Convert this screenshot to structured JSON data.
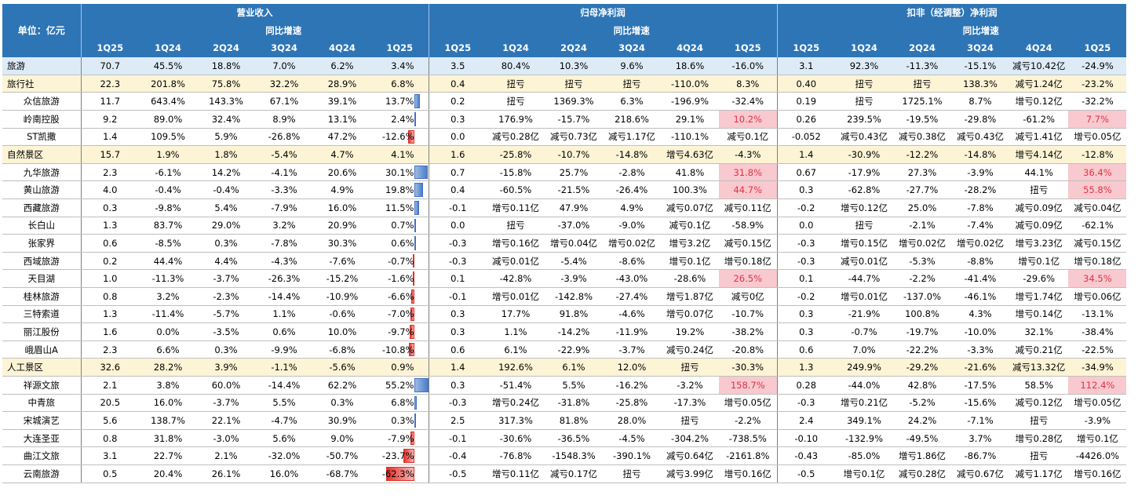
{
  "header": {
    "unit": "单位：亿元",
    "groups": [
      "营业收入",
      "归母净利润",
      "扣非（经调整）净利润"
    ],
    "growth_label": "同比增速",
    "cols": [
      "1Q25",
      "1Q24",
      "2Q24",
      "3Q24",
      "4Q24",
      "1Q25"
    ]
  },
  "colors": {
    "header_bg": "#2e75b6",
    "category_bg": "#fdf4d6",
    "total_bg": "#ddebf7",
    "highlight_bg": "#f8c9ce",
    "positive_bar": "#4472c4",
    "negative_bar": "#e8312a"
  },
  "rows": [
    {
      "type": "total",
      "name": "旅游",
      "rev": [
        "70.7",
        "45.5%",
        "18.8%",
        "7.0%",
        "6.2%",
        "3.4%"
      ],
      "np": [
        "3.5",
        "80.4%",
        "10.3%",
        "9.6%",
        "18.6%",
        "-16.0%"
      ],
      "dnp": [
        "3.1",
        "92.3%",
        "-11.3%",
        "-15.1%",
        "减亏10.42亿",
        "-24.9%"
      ],
      "bar": 0
    },
    {
      "type": "cat",
      "name": "旅行社",
      "rev": [
        "22.3",
        "201.8%",
        "75.8%",
        "32.2%",
        "28.9%",
        "6.8%"
      ],
      "np": [
        "0.4",
        "扭亏",
        "扭亏",
        "扭亏",
        "-110.0%",
        "8.3%"
      ],
      "dnp": [
        "0.40",
        "扭亏",
        "扭亏",
        "138.3%",
        "减亏1.24亿",
        "-23.2%"
      ],
      "bar": 0
    },
    {
      "type": "sub",
      "name": "众信旅游",
      "rev": [
        "11.7",
        "643.4%",
        "143.3%",
        "67.1%",
        "39.1%",
        "13.7%"
      ],
      "np": [
        "0.2",
        "扭亏",
        "1369.3%",
        "6.3%",
        "-196.9%",
        "-32.4%"
      ],
      "dnp": [
        "0.19",
        "扭亏",
        "1725.1%",
        "8.7%",
        "增亏0.12亿",
        "-32.2%"
      ],
      "bar": 13.7
    },
    {
      "type": "sub",
      "name": "岭南控股",
      "rev": [
        "9.2",
        "89.0%",
        "32.4%",
        "8.9%",
        "13.1%",
        "2.4%"
      ],
      "np": [
        "0.3",
        "176.9%",
        "-15.7%",
        "218.6%",
        "29.1%",
        "10.2%"
      ],
      "dnp": [
        "0.26",
        "239.5%",
        "-19.5%",
        "-29.8%",
        "-61.2%",
        "7.7%"
      ],
      "bar": 2.4,
      "hl": true
    },
    {
      "type": "sub",
      "name": "ST凯撒",
      "rev": [
        "1.4",
        "109.5%",
        "5.9%",
        "-26.8%",
        "47.2%",
        "-12.6%"
      ],
      "np": [
        "0.0",
        "减亏0.28亿",
        "减亏0.73亿",
        "减亏1.17亿",
        "-110.1%",
        "减亏0.1亿"
      ],
      "dnp": [
        "-0.052",
        "减亏0.43亿",
        "减亏0.38亿",
        "减亏0.43亿",
        "减亏1.41亿",
        "增亏0.05亿"
      ],
      "bar": -12.6
    },
    {
      "type": "cat",
      "name": "自然景区",
      "rev": [
        "15.7",
        "1.9%",
        "1.8%",
        "-5.4%",
        "4.7%",
        "4.1%"
      ],
      "np": [
        "1.6",
        "-25.8%",
        "-10.7%",
        "-14.8%",
        "增亏4.63亿",
        "-4.3%"
      ],
      "dnp": [
        "1.4",
        "-30.9%",
        "-12.2%",
        "-14.8%",
        "增亏4.14亿",
        "-12.8%"
      ],
      "bar": 0
    },
    {
      "type": "sub",
      "name": "九华旅游",
      "rev": [
        "2.3",
        "-6.1%",
        "14.2%",
        "-4.1%",
        "20.6%",
        "30.1%"
      ],
      "np": [
        "0.7",
        "-15.8%",
        "25.7%",
        "-2.8%",
        "41.8%",
        "31.8%"
      ],
      "dnp": [
        "0.67",
        "-17.9%",
        "27.3%",
        "-3.9%",
        "44.1%",
        "36.4%"
      ],
      "bar": 30.1,
      "hl": true
    },
    {
      "type": "sub",
      "name": "黄山旅游",
      "rev": [
        "4.0",
        "-0.4%",
        "-0.4%",
        "-3.3%",
        "4.9%",
        "19.8%"
      ],
      "np": [
        "0.4",
        "-60.5%",
        "-21.5%",
        "-26.4%",
        "100.3%",
        "44.7%"
      ],
      "dnp": [
        "0.3",
        "-62.8%",
        "-27.7%",
        "-28.2%",
        "扭亏",
        "55.8%"
      ],
      "bar": 19.8,
      "hl": true
    },
    {
      "type": "sub",
      "name": "西藏旅游",
      "rev": [
        "0.3",
        "-9.8%",
        "5.4%",
        "-7.9%",
        "16.0%",
        "11.5%"
      ],
      "np": [
        "-0.1",
        "增亏0.11亿",
        "47.9%",
        "4.9%",
        "减亏0.07亿",
        "减亏0.11亿"
      ],
      "dnp": [
        "-0.2",
        "增亏0.12亿",
        "25.0%",
        "-7.8%",
        "减亏0.09亿",
        "减亏0.04亿"
      ],
      "bar": 11.5
    },
    {
      "type": "sub",
      "name": "长白山",
      "rev": [
        "1.3",
        "83.7%",
        "29.0%",
        "3.2%",
        "20.9%",
        "0.7%"
      ],
      "np": [
        "0.0",
        "扭亏",
        "-37.0%",
        "-9.0%",
        "减亏0.1亿",
        "-58.9%"
      ],
      "dnp": [
        "0.0",
        "扭亏",
        "-2.1%",
        "-7.4%",
        "减亏0.09亿",
        "-62.1%"
      ],
      "bar": 0.7
    },
    {
      "type": "sub",
      "name": "张家界",
      "rev": [
        "0.6",
        "-8.5%",
        "0.3%",
        "-7.8%",
        "30.3%",
        "0.6%"
      ],
      "np": [
        "-0.3",
        "增亏0.16亿",
        "增亏0.04亿",
        "增亏0.02亿",
        "增亏3.2亿",
        "减亏0.15亿"
      ],
      "dnp": [
        "-0.3",
        "增亏0.15亿",
        "增亏0.02亿",
        "增亏0.02亿",
        "增亏3.23亿",
        "减亏0.15亿"
      ],
      "bar": 0.6
    },
    {
      "type": "sub",
      "name": "西域旅游",
      "rev": [
        "0.2",
        "44.4%",
        "4.4%",
        "-4.3%",
        "-7.6%",
        "-0.7%"
      ],
      "np": [
        "-0.3",
        "减亏0.01亿",
        "-5.4%",
        "-8.6%",
        "增亏0.1亿",
        "增亏0.18亿"
      ],
      "dnp": [
        "-0.3",
        "减亏0.01亿",
        "-5.3%",
        "-8.8%",
        "增亏0.1亿",
        "增亏0.18亿"
      ],
      "bar": -0.7
    },
    {
      "type": "sub",
      "name": "天目湖",
      "rev": [
        "1.0",
        "-11.3%",
        "-3.7%",
        "-26.3%",
        "-15.2%",
        "-1.6%"
      ],
      "np": [
        "0.1",
        "-42.8%",
        "-3.9%",
        "-43.0%",
        "-28.6%",
        "26.5%"
      ],
      "dnp": [
        "0.1",
        "-44.7%",
        "-2.2%",
        "-41.4%",
        "-29.6%",
        "34.5%"
      ],
      "bar": -1.6,
      "hl": true
    },
    {
      "type": "sub",
      "name": "桂林旅游",
      "rev": [
        "0.8",
        "3.2%",
        "-2.3%",
        "-14.4%",
        "-10.9%",
        "-6.6%"
      ],
      "np": [
        "-0.1",
        "增亏0.01亿",
        "-142.8%",
        "-27.4%",
        "增亏1.87亿",
        "减亏0亿"
      ],
      "dnp": [
        "-0.2",
        "增亏0.01亿",
        "-137.0%",
        "-46.1%",
        "增亏1.74亿",
        "增亏0.06亿"
      ],
      "bar": -6.6
    },
    {
      "type": "sub",
      "name": "三特索道",
      "rev": [
        "1.3",
        "-11.4%",
        "-5.7%",
        "1.1%",
        "-0.6%",
        "-7.0%"
      ],
      "np": [
        "0.3",
        "17.7%",
        "91.8%",
        "-4.6%",
        "增亏0.07亿",
        "-10.7%"
      ],
      "dnp": [
        "0.3",
        "-21.9%",
        "100.8%",
        "4.3%",
        "增亏0.14亿",
        "-13.1%"
      ],
      "bar": -7.0
    },
    {
      "type": "sub",
      "name": "丽江股份",
      "rev": [
        "1.6",
        "0.0%",
        "-3.5%",
        "0.6%",
        "10.0%",
        "-9.7%"
      ],
      "np": [
        "0.3",
        "1.1%",
        "-14.2%",
        "-11.9%",
        "19.2%",
        "-38.2%"
      ],
      "dnp": [
        "0.3",
        "-0.7%",
        "-19.7%",
        "-10.0%",
        "32.1%",
        "-38.4%"
      ],
      "bar": -9.7
    },
    {
      "type": "sub",
      "name": "峨眉山A",
      "rev": [
        "2.3",
        "6.6%",
        "0.3%",
        "-9.9%",
        "-6.8%",
        "-10.8%"
      ],
      "np": [
        "0.6",
        "6.1%",
        "-22.9%",
        "-3.7%",
        "减亏0.24亿",
        "-20.8%"
      ],
      "dnp": [
        "0.6",
        "7.0%",
        "-22.2%",
        "-3.3%",
        "减亏0.21亿",
        "-22.5%"
      ],
      "bar": -10.8
    },
    {
      "type": "cat",
      "name": "人工景区",
      "rev": [
        "32.6",
        "28.2%",
        "3.9%",
        "-1.1%",
        "-5.6%",
        "0.9%"
      ],
      "np": [
        "1.4",
        "192.6%",
        "6.1%",
        "12.0%",
        "扭亏",
        "-30.3%"
      ],
      "dnp": [
        "1.3",
        "249.9%",
        "-29.2%",
        "-21.6%",
        "减亏13.32亿",
        "-34.9%"
      ],
      "bar": 0
    },
    {
      "type": "sub",
      "name": "祥源文旅",
      "rev": [
        "2.1",
        "3.8%",
        "60.0%",
        "-14.4%",
        "62.2%",
        "55.2%"
      ],
      "np": [
        "0.3",
        "-51.4%",
        "5.5%",
        "-16.2%",
        "-3.2%",
        "158.7%"
      ],
      "dnp": [
        "0.28",
        "-44.0%",
        "42.8%",
        "-17.5%",
        "58.5%",
        "112.4%"
      ],
      "bar": 55.2,
      "hl": true
    },
    {
      "type": "sub",
      "name": "中青旅",
      "rev": [
        "20.5",
        "16.0%",
        "-3.7%",
        "5.5%",
        "0.3%",
        "6.8%"
      ],
      "np": [
        "-0.3",
        "增亏0.24亿",
        "-31.8%",
        "-25.8%",
        "-17.3%",
        "增亏0.05亿"
      ],
      "dnp": [
        "-0.3",
        "增亏0.21亿",
        "-5.2%",
        "-15.6%",
        "减亏0.12亿",
        "增亏0.05亿"
      ],
      "bar": 6.8
    },
    {
      "type": "sub",
      "name": "宋城演艺",
      "rev": [
        "5.6",
        "138.7%",
        "22.1%",
        "-4.7%",
        "30.9%",
        "0.3%"
      ],
      "np": [
        "2.5",
        "317.3%",
        "81.8%",
        "28.0%",
        "扭亏",
        "-2.2%"
      ],
      "dnp": [
        "2.4",
        "349.1%",
        "24.2%",
        "-7.1%",
        "扭亏",
        "-3.9%"
      ],
      "bar": 0.3
    },
    {
      "type": "sub",
      "name": "大连圣亚",
      "rev": [
        "0.8",
        "31.8%",
        "-3.0%",
        "5.6%",
        "9.0%",
        "-7.9%"
      ],
      "np": [
        "-0.1",
        "-30.6%",
        "-36.5%",
        "-4.5%",
        "-304.2%",
        "-738.5%"
      ],
      "dnp": [
        "-0.10",
        "-132.9%",
        "-49.5%",
        "3.7%",
        "增亏0.28亿",
        "增亏0.1亿"
      ],
      "bar": -7.9
    },
    {
      "type": "sub",
      "name": "曲江文旅",
      "rev": [
        "3.1",
        "22.7%",
        "2.1%",
        "-32.0%",
        "-50.7%",
        "-23.7%"
      ],
      "np": [
        "-0.4",
        "-76.8%",
        "-1548.3%",
        "-390.1%",
        "减亏0.64亿",
        "-2161.8%"
      ],
      "dnp": [
        "-0.43",
        "-85.0%",
        "增亏1.86亿",
        "-86.7%",
        "扭亏",
        "-4426.0%"
      ],
      "bar": -23.7
    },
    {
      "type": "sub",
      "name": "云南旅游",
      "rev": [
        "0.5",
        "20.4%",
        "26.1%",
        "16.0%",
        "-68.7%",
        "-62.3%"
      ],
      "np": [
        "-0.5",
        "增亏0.11亿",
        "减亏0.17亿",
        "扭亏",
        "减亏3.99亿",
        "增亏0.16亿"
      ],
      "dnp": [
        "-0.5",
        "增亏0.1亿",
        "减亏0.28亿",
        "减亏0.67亿",
        "减亏1.17亿",
        "增亏0.16亿"
      ],
      "bar": -62.3
    }
  ]
}
